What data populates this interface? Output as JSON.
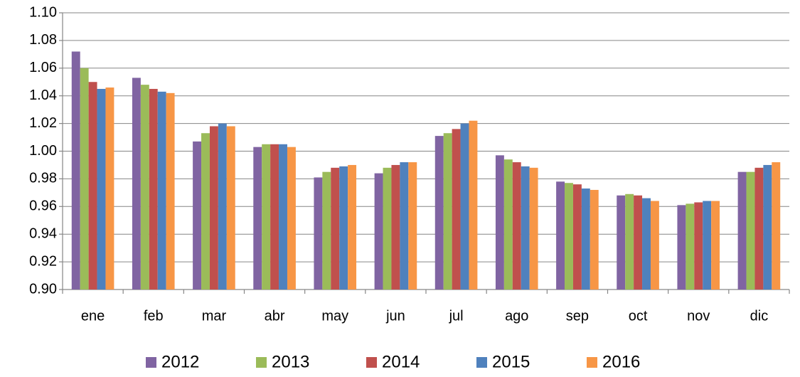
{
  "chart_data": {
    "type": "bar",
    "categories": [
      "ene",
      "feb",
      "mar",
      "abr",
      "may",
      "jun",
      "jul",
      "ago",
      "sep",
      "oct",
      "nov",
      "dic"
    ],
    "series": [
      {
        "name": "2012",
        "color": "#8064a2",
        "values": [
          1.072,
          1.053,
          1.007,
          1.003,
          0.981,
          0.984,
          1.011,
          0.997,
          0.978,
          0.968,
          0.961,
          0.985
        ]
      },
      {
        "name": "2013",
        "color": "#9bbb59",
        "values": [
          1.06,
          1.048,
          1.013,
          1.005,
          0.985,
          0.988,
          1.013,
          0.994,
          0.977,
          0.969,
          0.962,
          0.985
        ]
      },
      {
        "name": "2014",
        "color": "#c0504d",
        "values": [
          1.05,
          1.045,
          1.018,
          1.005,
          0.988,
          0.99,
          1.016,
          0.992,
          0.976,
          0.968,
          0.963,
          0.988
        ]
      },
      {
        "name": "2015",
        "color": "#4f81bd",
        "values": [
          1.045,
          1.043,
          1.02,
          1.005,
          0.989,
          0.992,
          1.02,
          0.989,
          0.973,
          0.966,
          0.964,
          0.99
        ]
      },
      {
        "name": "2016",
        "color": "#f79646",
        "values": [
          1.046,
          1.042,
          1.018,
          1.003,
          0.99,
          0.992,
          1.022,
          0.988,
          0.972,
          0.964,
          0.964,
          0.992
        ]
      }
    ],
    "ylim": [
      0.9,
      1.1
    ],
    "yticks": [
      {
        "value": 0.9,
        "label": "0.90"
      },
      0.92,
      0.94,
      0.96,
      0.98,
      {
        "value": 1.0,
        "label": "1.00"
      },
      1.02,
      1.04,
      1.06,
      1.08,
      {
        "value": 1.1,
        "label": "1.10"
      }
    ],
    "grid": true,
    "legend": "bottom"
  }
}
